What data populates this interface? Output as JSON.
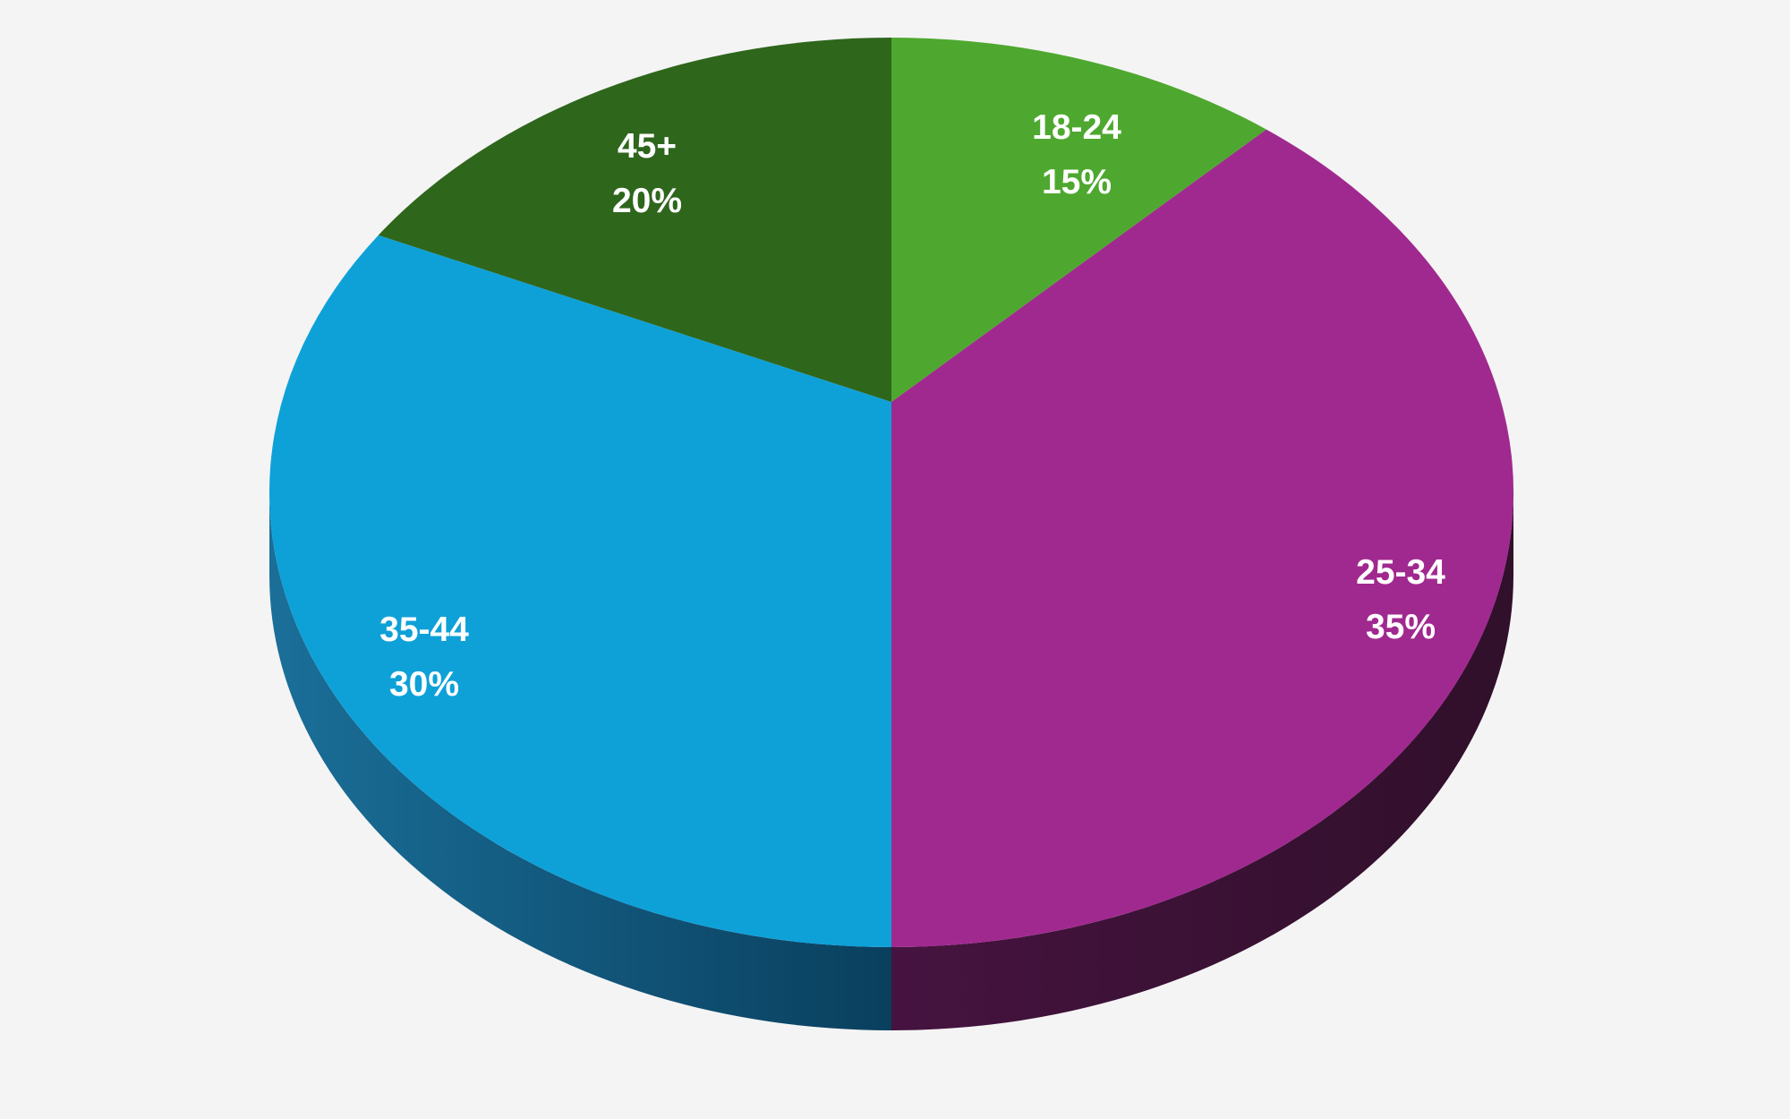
{
  "chart_data": {
    "type": "pie",
    "style": "3d",
    "title": "",
    "legend": "none",
    "slices": [
      {
        "label": "18-24",
        "value": 15,
        "value_label": "15%",
        "color": "#4ea82f",
        "side_color": "#2f6a1c"
      },
      {
        "label": "25-34",
        "value": 35,
        "value_label": "35%",
        "color": "#a0298f",
        "side_color": "#3f1236"
      },
      {
        "label": "35-44",
        "value": 30,
        "value_label": "30%",
        "color": "#0ea1d8",
        "side_color": "#0b4d70"
      },
      {
        "label": "45+",
        "value": 20,
        "value_label": "20%",
        "color": "#2e661c",
        "side_color": "#1c3f11"
      }
    ]
  }
}
